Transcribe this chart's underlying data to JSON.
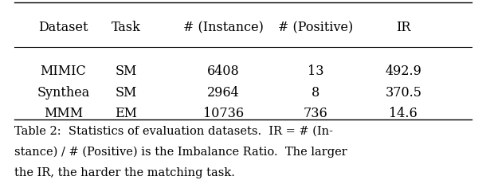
{
  "col_headers": [
    "Dataset",
    "Task",
    "# (Instance)",
    "# (Positive)",
    "IR"
  ],
  "rows": [
    [
      "MIMIC",
      "SM",
      "6408",
      "13",
      "492.9"
    ],
    [
      "Synthea",
      "SM",
      "2964",
      "8",
      "370.5"
    ],
    [
      "MMM",
      "EM",
      "10736",
      "736",
      "14.6"
    ]
  ],
  "caption_line1": "Table 2:  Statistics of evaluation datasets.  IR = # (In-",
  "caption_line2": "stance) / # (Positive) is the Imbalance Ratio.  The larger",
  "caption_line3": "the IR, the harder the matching task.",
  "bg_color": "#ffffff",
  "text_color": "#000000",
  "header_fontsize": 11.5,
  "body_fontsize": 11.5,
  "caption_fontsize": 10.5
}
